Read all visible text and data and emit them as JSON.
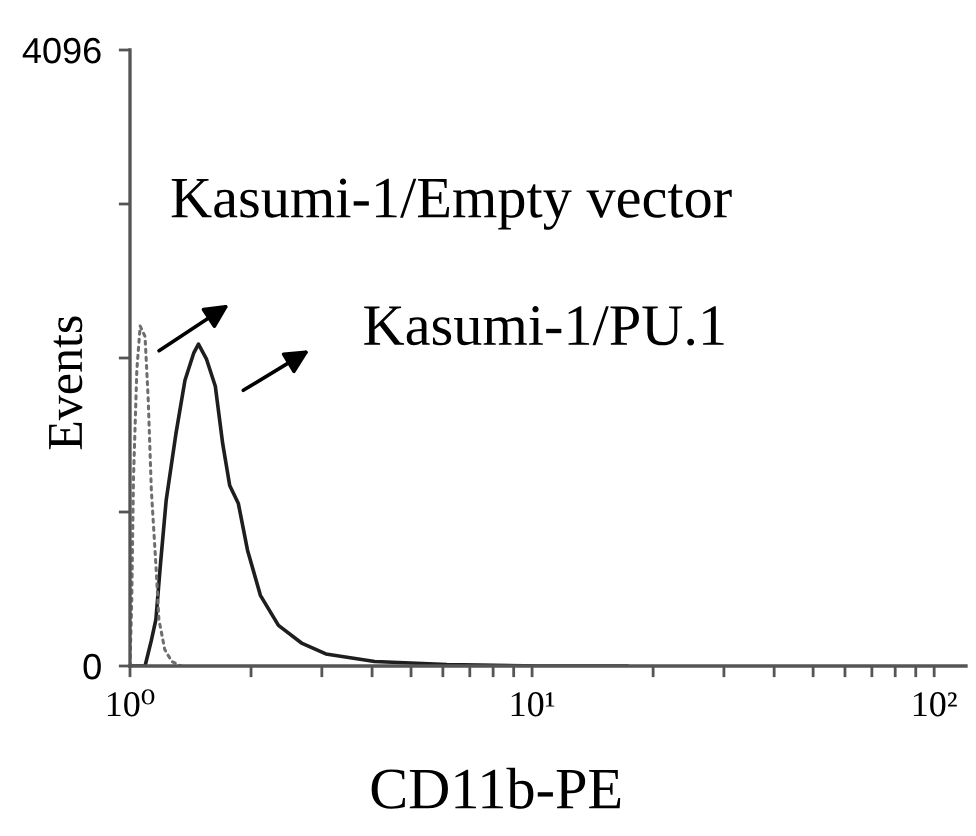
{
  "chart_data": {
    "type": "line",
    "xlabel": "CD11b-PE",
    "ylabel": "Events",
    "log": "x",
    "xlim": [
      1,
      120
    ],
    "xticks": [
      {
        "value": 1,
        "label": "10⁰"
      },
      {
        "value": 2,
        "label": null
      },
      {
        "value": 3,
        "label": null
      },
      {
        "value": 4,
        "label": null
      },
      {
        "value": 5,
        "label": null
      },
      {
        "value": 6,
        "label": null
      },
      {
        "value": 7,
        "label": null
      },
      {
        "value": 8,
        "label": null
      },
      {
        "value": 9,
        "label": null
      },
      {
        "value": 10,
        "label": "10¹"
      },
      {
        "value": 20,
        "label": null
      },
      {
        "value": 30,
        "label": null
      },
      {
        "value": 40,
        "label": null
      },
      {
        "value": 50,
        "label": null
      },
      {
        "value": 60,
        "label": null
      },
      {
        "value": 70,
        "label": null
      },
      {
        "value": 80,
        "label": null
      },
      {
        "value": 90,
        "label": null
      },
      {
        "value": 100,
        "label": "10²"
      }
    ],
    "ylim": [
      0,
      4096
    ],
    "yticks": [
      0,
      {
        "value": 1024,
        "label": null
      },
      {
        "value": 2048,
        "label": null
      },
      {
        "value": 3072,
        "label": null
      },
      4096
    ],
    "series": [
      {
        "color": "#1e1e1e",
        "line_style": "solid",
        "x": [
          1.0,
          1.09,
          1.13,
          1.16,
          1.19,
          1.23,
          1.3,
          1.37,
          1.44,
          1.48,
          1.55,
          1.63,
          1.7,
          1.77,
          1.86,
          1.96,
          2.11,
          2.34,
          2.68,
          3.07,
          4.06,
          6.14,
          10.4,
          17.3
        ],
        "values": [
          0,
          0,
          170,
          310,
          670,
          1100,
          1540,
          1900,
          2080,
          2140,
          2040,
          1860,
          1480,
          1200,
          1080,
          770,
          470,
          270,
          150,
          80,
          30,
          10,
          0,
          0
        ]
      },
      {
        "color": "#6e6e6e",
        "line_style": "dotted",
        "x": [
          1.0,
          1.01,
          1.02,
          1.04,
          1.06,
          1.09,
          1.11,
          1.13,
          1.16,
          1.18,
          1.22,
          1.27,
          1.34
        ],
        "values": [
          0,
          440,
          1240,
          1970,
          2260,
          2190,
          1770,
          1170,
          670,
          310,
          110,
          30,
          0
        ]
      }
    ],
    "annotations": [
      {
        "text": "Kasumi-1/Empty vector",
        "x": 1.09,
        "y": 2190
      },
      {
        "text": "Kasumi-1/PU.1",
        "x": 1.63,
        "y": 1860
      }
    ]
  }
}
